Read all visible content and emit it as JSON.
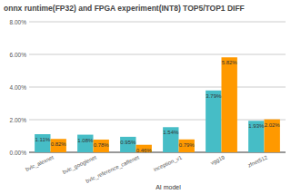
{
  "chart_data": {
    "type": "bar",
    "title": "onnx runtime(FP32) and FPGA experiment(INT8) TOP5/TOP1 DIFF",
    "x_label": "AI model",
    "categories": [
      "bvlc_alexnet",
      "bvlc_googlenet",
      "bvlc_reference_caffenet",
      "inception_v1",
      "vgg19",
      "zfnet512"
    ],
    "series": [
      {
        "color": "#46bdc6",
        "values": [
          1.11,
          1.08,
          0.95,
          1.54,
          3.79,
          1.93
        ],
        "value_labels": [
          "1.11%",
          "1.08%",
          "0.95%",
          "1.54%",
          "3.79%",
          "1.93%"
        ]
      },
      {
        "color": "#ff9900",
        "values": [
          0.82,
          0.78,
          0.46,
          0.79,
          5.82,
          2.02
        ],
        "value_labels": [
          "0.82%",
          "0.78%",
          "0.46%",
          "0.79%",
          "5.82%",
          "2.02%"
        ]
      }
    ],
    "ylim": [
      0,
      8
    ],
    "yticks": [
      {
        "value": 0,
        "label": "0.00%"
      },
      {
        "value": 2,
        "label": "2.00%"
      },
      {
        "value": 4,
        "label": "4.00%"
      },
      {
        "value": 6,
        "label": "6.00%"
      },
      {
        "value": 8,
        "label": "8.00%"
      }
    ],
    "grid": true,
    "data_labels": true
  }
}
